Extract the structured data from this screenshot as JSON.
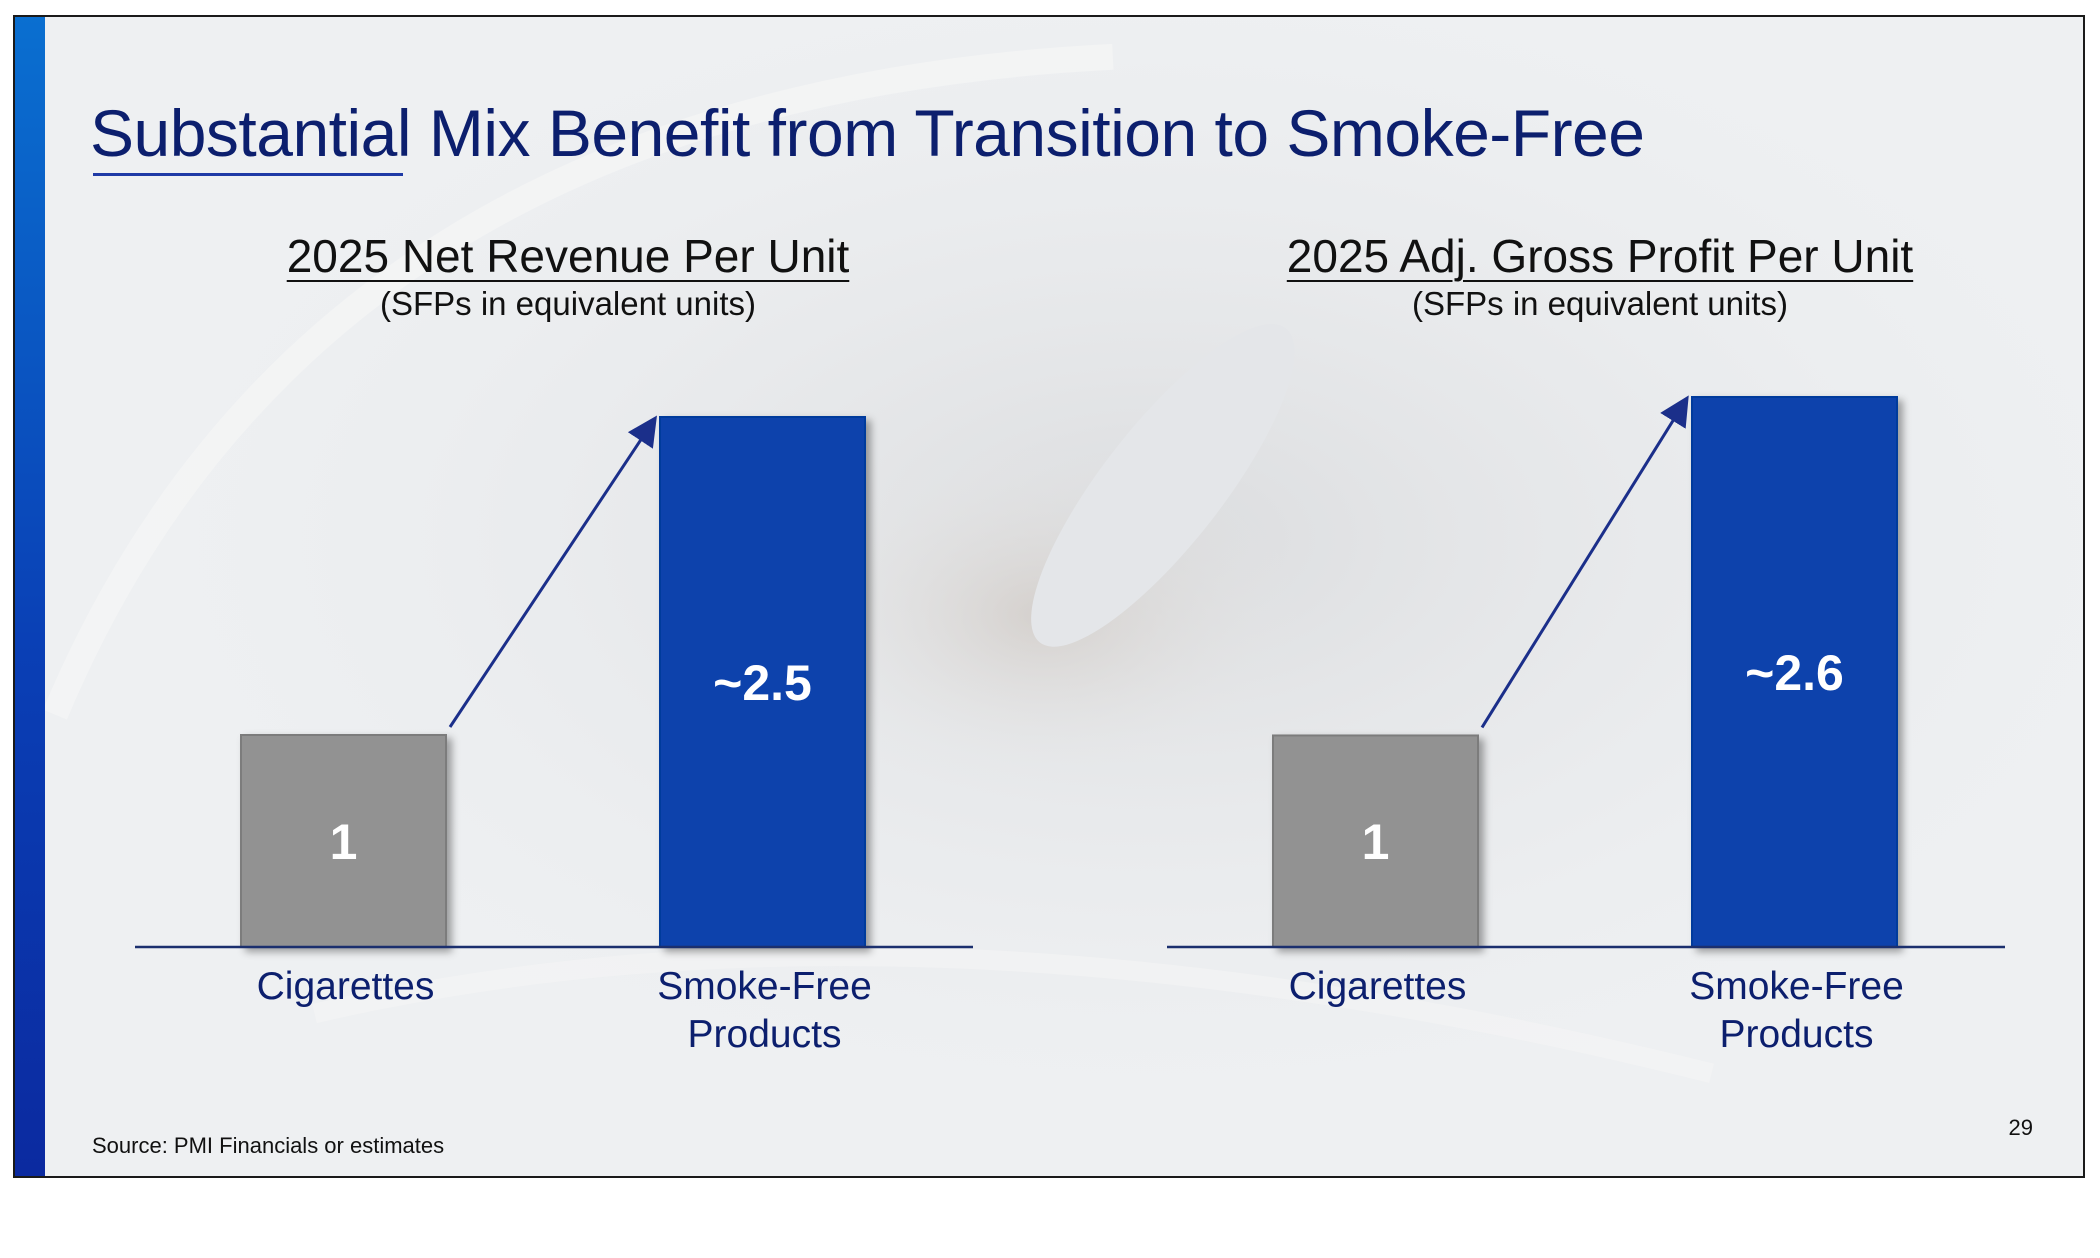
{
  "slide": {
    "title": "Substantial Mix Benefit from Transition to Smoke-Free",
    "source": "Source: PMI Financials or estimates",
    "page_number": "29",
    "colors": {
      "accent": "#0a3fb5",
      "title": "#0c1f6e",
      "bar_gray": "#929292",
      "bar_blue": "#0742ac"
    }
  },
  "chart_data": [
    {
      "type": "bar",
      "title": "2025 Net Revenue Per Unit",
      "subtitle": "(SFPs in equivalent units)",
      "categories": [
        [
          "Cigarettes"
        ],
        [
          "Smoke-Free",
          "Products"
        ]
      ],
      "values": [
        1,
        2.5
      ],
      "value_labels": [
        "1",
        "~2.5"
      ],
      "bar_colors": [
        "#929292",
        "#0742ac"
      ],
      "ylim": [
        0,
        2.5
      ],
      "arrow": true
    },
    {
      "type": "bar",
      "title": "2025 Adj. Gross Profit Per Unit",
      "subtitle": "(SFPs in equivalent units)",
      "categories": [
        [
          "Cigarettes"
        ],
        [
          "Smoke-Free",
          "Products"
        ]
      ],
      "values": [
        1,
        2.6
      ],
      "value_labels": [
        "1",
        "~2.6"
      ],
      "bar_colors": [
        "#929292",
        "#0742ac"
      ],
      "ylim": [
        0,
        2.6
      ],
      "arrow": true
    }
  ]
}
